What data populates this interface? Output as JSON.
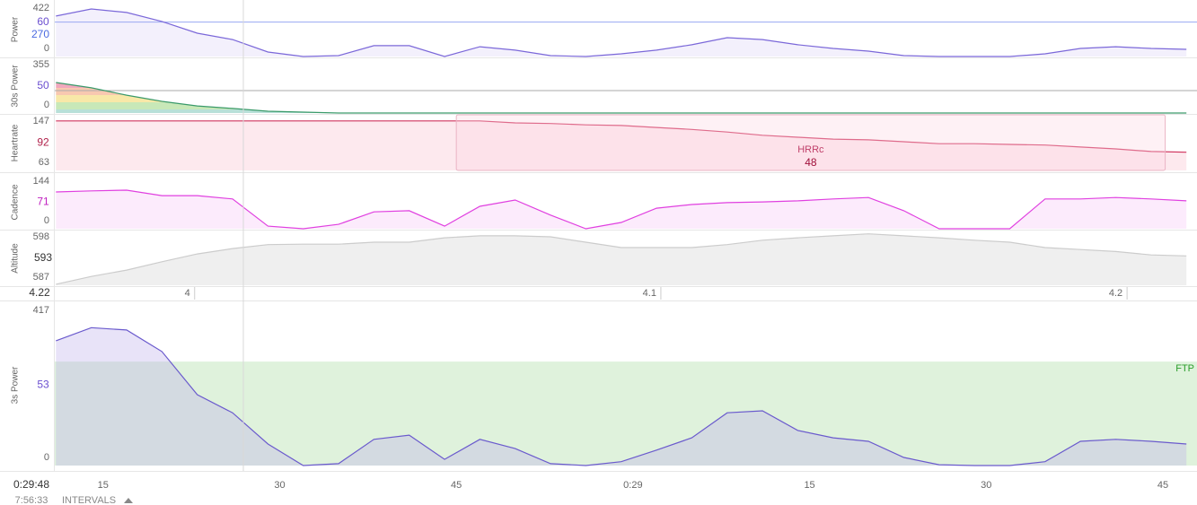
{
  "chart_data": {
    "type": "area",
    "x": [
      11,
      14,
      17,
      20,
      23,
      26,
      29,
      32,
      35,
      38,
      41,
      44,
      47,
      50,
      53,
      56,
      59,
      62,
      65,
      68,
      71,
      74,
      77,
      80,
      83,
      86,
      89,
      92,
      95,
      98,
      101,
      104,
      107
    ],
    "xlim": [
      10.9,
      107.9
    ],
    "xticks": [
      15,
      30,
      45,
      {
        "value": 60,
        "label": "0:29"
      },
      {
        "value": 75,
        "label": "15"
      },
      {
        "value": 90,
        "label": "30"
      },
      {
        "value": 105,
        "label": "45"
      }
    ],
    "panels": [
      {
        "ylabel": "Power",
        "ylim": [
          0,
          422
        ],
        "yticks": [
          0,
          422
        ],
        "current": 60,
        "threshold": 270,
        "threshold_color": "#9aa8f2",
        "color": "#7b68d9",
        "fill": "#f3f0fc",
        "values": [
          317,
          373,
          345,
          275,
          183,
          133,
          35,
          0,
          7,
          85,
          85,
          0,
          77,
          50,
          7,
          0,
          21,
          50,
          92,
          148,
          133,
          92,
          63,
          42,
          7,
          0,
          0,
          0,
          21,
          63,
          77,
          63,
          56
        ]
      },
      {
        "ylabel": "30s Power",
        "ylim": [
          0,
          355
        ],
        "yticks": [
          0,
          355
        ],
        "current": 50,
        "reference": 148,
        "reference_color": "#aaaaaa",
        "color": "#3a9a6a",
        "fill": "#f4f4f4",
        "values": [
          201,
          166,
          118,
          77,
          47,
          30,
          12,
          6,
          0,
          0,
          0,
          0,
          0,
          0,
          0,
          0,
          0,
          0,
          0,
          0,
          0,
          0,
          0,
          0,
          0,
          0,
          0,
          0,
          0,
          0,
          0,
          0,
          0
        ]
      },
      {
        "ylabel": "Heartrate",
        "ylim": [
          63,
          147
        ],
        "yticks": [
          63,
          147
        ],
        "current": 92,
        "color": "#d0345e",
        "fill": "#fde9ee",
        "values": [
          139,
          139,
          139,
          139,
          139,
          139,
          139,
          139,
          139,
          139,
          139,
          139,
          139,
          136,
          135,
          133,
          132,
          129,
          126,
          122,
          117,
          114,
          111,
          110,
          107,
          104,
          104,
          103,
          102,
          99,
          96,
          92,
          91
        ],
        "annotation": {
          "label": "HRRc",
          "value": 48,
          "start": 45,
          "end": 105.2
        }
      },
      {
        "ylabel": "Cadence",
        "ylim": [
          0,
          144
        ],
        "yticks": [
          0,
          144
        ],
        "current": 71,
        "color": "#e040e0",
        "fill": "#fcebfc",
        "values": [
          100,
          103,
          105,
          90,
          90,
          81,
          7,
          0,
          12,
          46,
          49,
          7,
          61,
          78,
          37,
          0,
          17,
          56,
          66,
          71,
          73,
          76,
          81,
          85,
          49,
          0,
          0,
          0,
          81,
          81,
          85,
          81,
          76
        ]
      },
      {
        "ylabel": "Altitude",
        "ylim": [
          587,
          598
        ],
        "yticks": [
          587,
          598
        ],
        "current": 593,
        "color": "#cccccc",
        "fill": "#efefef",
        "values": [
          587.2,
          588.8,
          590.1,
          591.8,
          593.4,
          594.5,
          595.3,
          595.4,
          595.4,
          595.8,
          595.8,
          596.7,
          597.1,
          597.1,
          596.9,
          595.8,
          594.7,
          594.7,
          594.7,
          595.3,
          596.2,
          596.7,
          597.1,
          597.5,
          597.1,
          596.7,
          596.2,
          595.8,
          594.7,
          594.3,
          593.9,
          593.2,
          593.0
        ]
      },
      {
        "ylabel": "3s Power",
        "ylim": [
          0,
          417
        ],
        "yticks": [
          0,
          417
        ],
        "current": 53,
        "color": "#6a5acd",
        "fill": "rgba(190,175,235,0.35)",
        "band": {
          "label": "FTP",
          "value": 270,
          "color": "#dff2dc",
          "label_color": "#2a9d2a"
        },
        "values": [
          324,
          358,
          352,
          296,
          184,
          137,
          56,
          0,
          5,
          68,
          79,
          16,
          68,
          44,
          5,
          0,
          10,
          40,
          72,
          137,
          142,
          91,
          72,
          63,
          21,
          2,
          0,
          0,
          10,
          63,
          68,
          63,
          56
        ]
      }
    ],
    "distance": {
      "current": 4.22,
      "lim": [
        3.97,
        4.215
      ],
      "ticks": [
        4,
        4.1,
        4.2
      ]
    },
    "footer": {
      "time": "0:29:48",
      "duration": "7:56:33",
      "button": "INTERVALS"
    }
  }
}
